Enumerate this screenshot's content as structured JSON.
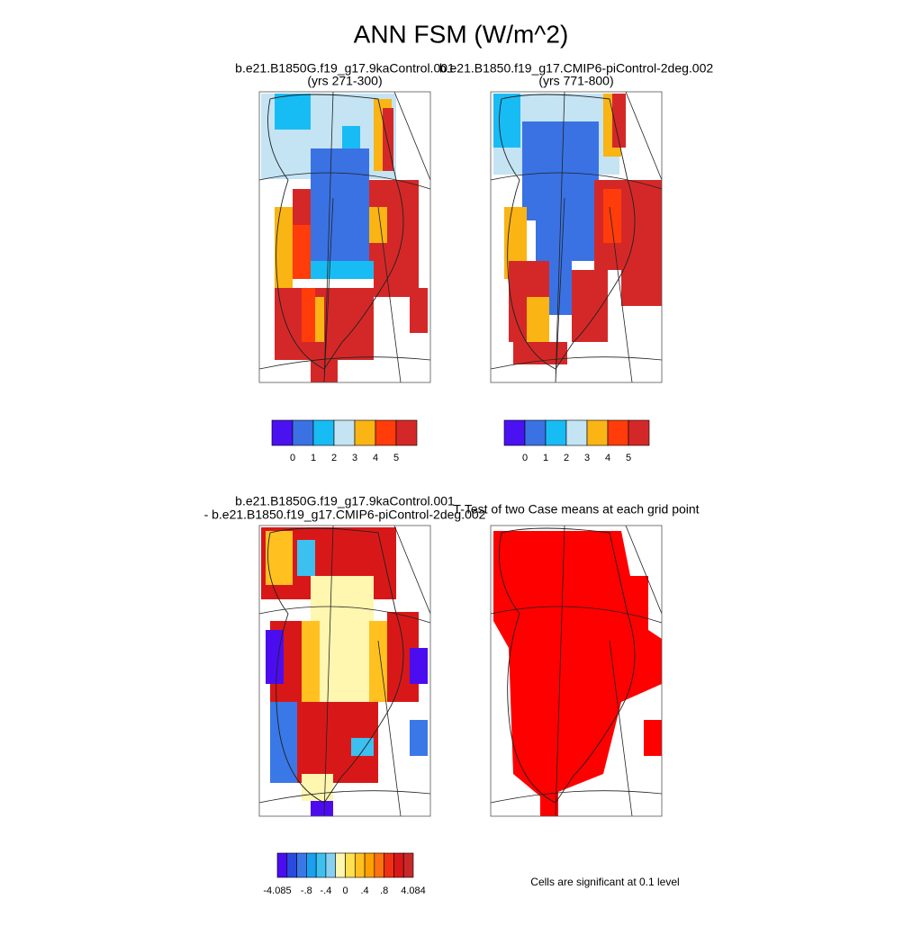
{
  "title": "ANN FSM (W/m^2)",
  "panels": [
    {
      "title": "b.e21.B1850G.f19_g17.9kaControl.001",
      "subtitle": "(yrs 271-300)"
    },
    {
      "title": "b.e21.B1850.f19_g17.CMIP6-piControl-2deg.002",
      "subtitle": "(yrs 771-800)"
    },
    {
      "title": "b.e21.B1850G.f19_g17.9kaControl.001",
      "subtitle": "- b.e21.B1850.f19_g17.CMIP6-piControl-2deg.002"
    },
    {
      "title": "T-Test of two Case means at each grid point"
    }
  ],
  "colorbars": [
    {
      "colors": [
        "#4a12f0",
        "#3a72e4",
        "#18bcf5",
        "#c4e4f4",
        "#fab414",
        "#ff3c0a",
        "#d42828"
      ],
      "ticks": [
        0,
        1,
        2,
        3,
        4,
        5
      ]
    },
    {
      "colors": [
        "#4a12f0",
        "#3a72e4",
        "#18bcf5",
        "#c4e4f4",
        "#fab414",
        "#ff3c0a",
        "#d42828"
      ],
      "ticks": [
        0,
        1,
        2,
        3,
        4,
        5
      ]
    },
    {
      "colors": [
        "#4b0df0",
        "#2a4be0",
        "#3a78e8",
        "#1ba0f0",
        "#3cc0f0",
        "#88d0f0",
        "#fff6b0",
        "#ffe050",
        "#ffc020",
        "#ffa000",
        "#ff7010",
        "#f03010",
        "#d81818",
        "#c82828"
      ],
      "ticks": [
        -4.085,
        {
          "value": -0.8,
          "label": "-.8"
        },
        {
          "value": -0.4,
          "label": "-.4"
        },
        0,
        {
          "value": 0.4,
          "label": ".4"
        },
        {
          "value": 0.8,
          "label": ".8"
        },
        4.084
      ]
    }
  ],
  "note": "Cells are significant at 0.1 level"
}
